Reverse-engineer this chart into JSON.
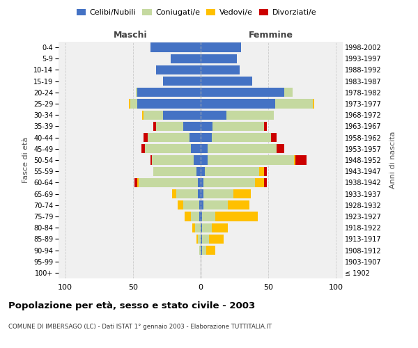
{
  "age_groups": [
    "100+",
    "95-99",
    "90-94",
    "85-89",
    "80-84",
    "75-79",
    "70-74",
    "65-69",
    "60-64",
    "55-59",
    "50-54",
    "45-49",
    "40-44",
    "35-39",
    "30-34",
    "25-29",
    "20-24",
    "15-19",
    "10-14",
    "5-9",
    "0-4"
  ],
  "birth_years": [
    "≤ 1902",
    "1903-1907",
    "1908-1912",
    "1913-1917",
    "1918-1922",
    "1923-1927",
    "1928-1932",
    "1933-1937",
    "1938-1942",
    "1943-1947",
    "1948-1952",
    "1953-1957",
    "1958-1962",
    "1963-1967",
    "1968-1972",
    "1973-1977",
    "1978-1982",
    "1983-1987",
    "1988-1992",
    "1993-1997",
    "1998-2002"
  ],
  "male": {
    "celibi": [
      0,
      0,
      0,
      0,
      0,
      1,
      1,
      2,
      2,
      3,
      5,
      7,
      8,
      13,
      28,
      47,
      47,
      28,
      33,
      22,
      37
    ],
    "coniugati": [
      0,
      0,
      1,
      2,
      4,
      6,
      12,
      16,
      44,
      32,
      31,
      34,
      31,
      20,
      14,
      5,
      1,
      0,
      0,
      0,
      0
    ],
    "vedovi": [
      0,
      0,
      0,
      1,
      2,
      5,
      4,
      3,
      1,
      0,
      0,
      0,
      0,
      0,
      1,
      1,
      0,
      0,
      0,
      0,
      0
    ],
    "divorziati": [
      0,
      0,
      0,
      0,
      0,
      0,
      0,
      0,
      2,
      0,
      1,
      3,
      3,
      2,
      0,
      0,
      0,
      0,
      0,
      0,
      0
    ]
  },
  "female": {
    "nubili": [
      0,
      0,
      1,
      1,
      1,
      1,
      2,
      2,
      2,
      3,
      5,
      5,
      8,
      9,
      19,
      55,
      62,
      38,
      29,
      27,
      30
    ],
    "coniugate": [
      0,
      0,
      3,
      5,
      7,
      10,
      18,
      22,
      38,
      40,
      64,
      51,
      44,
      38,
      35,
      28,
      6,
      0,
      0,
      0,
      0
    ],
    "vedove": [
      0,
      0,
      7,
      11,
      12,
      31,
      16,
      13,
      7,
      4,
      1,
      0,
      0,
      0,
      0,
      1,
      0,
      0,
      0,
      0,
      0
    ],
    "divorziate": [
      0,
      0,
      0,
      0,
      0,
      0,
      0,
      0,
      2,
      2,
      8,
      6,
      4,
      2,
      0,
      0,
      0,
      0,
      0,
      0,
      0
    ]
  },
  "colors": {
    "celibi_nubili": "#4472c4",
    "coniugati_e": "#c5d9a0",
    "vedovi_e": "#ffc000",
    "divorziati_e": "#cc0000"
  },
  "xlim": 105,
  "title": "Popolazione per età, sesso e stato civile - 2003",
  "subtitle": "COMUNE DI IMBERSAGO (LC) - Dati ISTAT 1° gennaio 2003 - Elaborazione TUTTITALIA.IT",
  "ylabel_left": "Fasce di età",
  "ylabel_right": "Anni di nascita",
  "xlabel_left": "Maschi",
  "xlabel_right": "Femmine",
  "bg_color": "#f0f0f0",
  "grid_color": "#cccccc"
}
